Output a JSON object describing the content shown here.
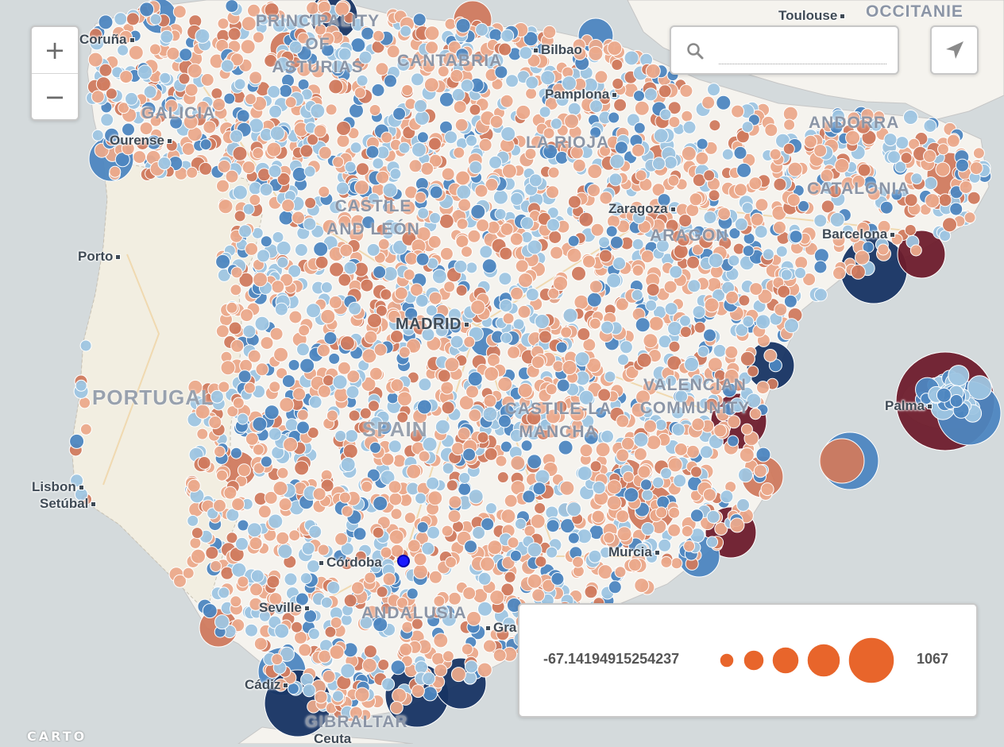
{
  "map": {
    "colors": {
      "water": "#d4dadc",
      "land": "#f5f3ee",
      "land_portugal": "#f2eee1",
      "road": "#f0d9b0",
      "bubble_light_orange": "#eba98b",
      "bubble_orange": "#d07a5e",
      "bubble_light_blue": "#9ec5e2",
      "bubble_blue": "#4d86c0",
      "bubble_dark_blue": "#173463",
      "bubble_dark_red": "#6e1c2c"
    },
    "labels": {
      "coruna": "Coruña",
      "ourense": "Ourense",
      "porto": "Porto",
      "lisbon": "Lisbon",
      "setubal": "Setúbal",
      "bilbao": "Bilbao",
      "pamplona": "Pamplona",
      "toulouse": "Toulouse",
      "zaragoza": "Zaragoza",
      "barcelona": "Barcelona",
      "madrid": "MADRID",
      "palma": "Palma",
      "murcia": "Murcia",
      "cordoba": "Córdoba",
      "seville": "Seville",
      "granada": "Gra",
      "cadiz": "Cádiz",
      "ceuta": "Ceuta",
      "principality": "PRINCIPALITY",
      "of": "OF",
      "asturias": "ASTURIAS",
      "cantabria": "CANTABRIA",
      "galicia": "GALICIA",
      "la_rioja": "LA RIOJA",
      "andorra": "ANDORRA",
      "occitanie": "OCCITANIE",
      "catalonia": "CATALONIA",
      "castile": "CASTILE",
      "and_leon": "AND LEÓN",
      "aragon": "ARAGON",
      "portugal": "PORTUGAL",
      "spain": "SPAIN",
      "castile_la": "CASTILE-LA",
      "mancha": "MANCHA",
      "valencian": "VALENCIAN",
      "community": "COMMUNITY",
      "andalusia": "ANDALUSIA",
      "gibraltar": "GIBRALTAR"
    }
  },
  "controls": {
    "zoom_in": "+",
    "zoom_out": "−",
    "search_placeholder": "",
    "search_icon": "search-icon",
    "locate_icon": "navigation-arrow-icon"
  },
  "legend": {
    "min_label": "-67.14194915254237",
    "max_label": "1067",
    "bubble_color": "#e8652b"
  },
  "attribution": "CARTO"
}
